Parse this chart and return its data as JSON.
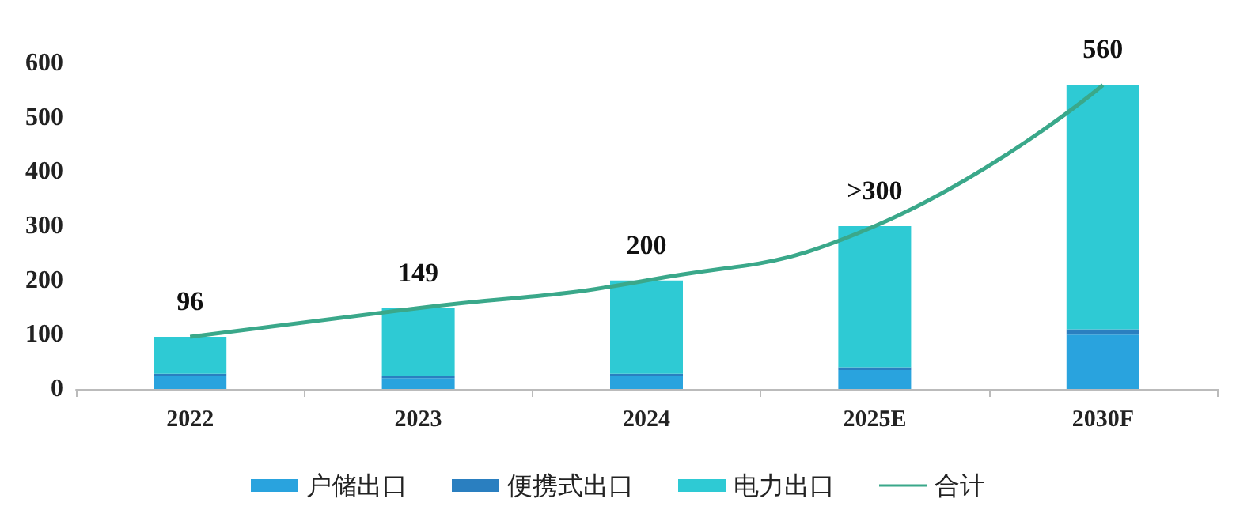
{
  "chart_data": {
    "type": "bar",
    "stacked": true,
    "categories": [
      "2022",
      "2023",
      "2024",
      "2025E",
      "2030F"
    ],
    "ylim": [
      0,
      600
    ],
    "yticks": [
      0,
      100,
      200,
      300,
      400,
      500,
      600
    ],
    "grid": false,
    "legend": "bottom",
    "marker": "none",
    "line_style": "solid",
    "series": [
      {
        "name": "户储出口",
        "color": "#29a3de",
        "values": [
          24,
          20,
          24,
          35,
          100
        ]
      },
      {
        "name": "便携式出口",
        "color": "#2a7fc0",
        "values": [
          4,
          4,
          4,
          5,
          10
        ]
      },
      {
        "name": "电力出口",
        "color": "#2ecad4",
        "values": [
          68,
          125,
          172,
          260,
          450
        ]
      },
      {
        "name": "合计",
        "type": "line",
        "color": "#3aa88a",
        "values": [
          96,
          149,
          200,
          300,
          560
        ],
        "value_labels": [
          "96",
          "149",
          "200",
          ">300",
          "560"
        ]
      }
    ]
  }
}
